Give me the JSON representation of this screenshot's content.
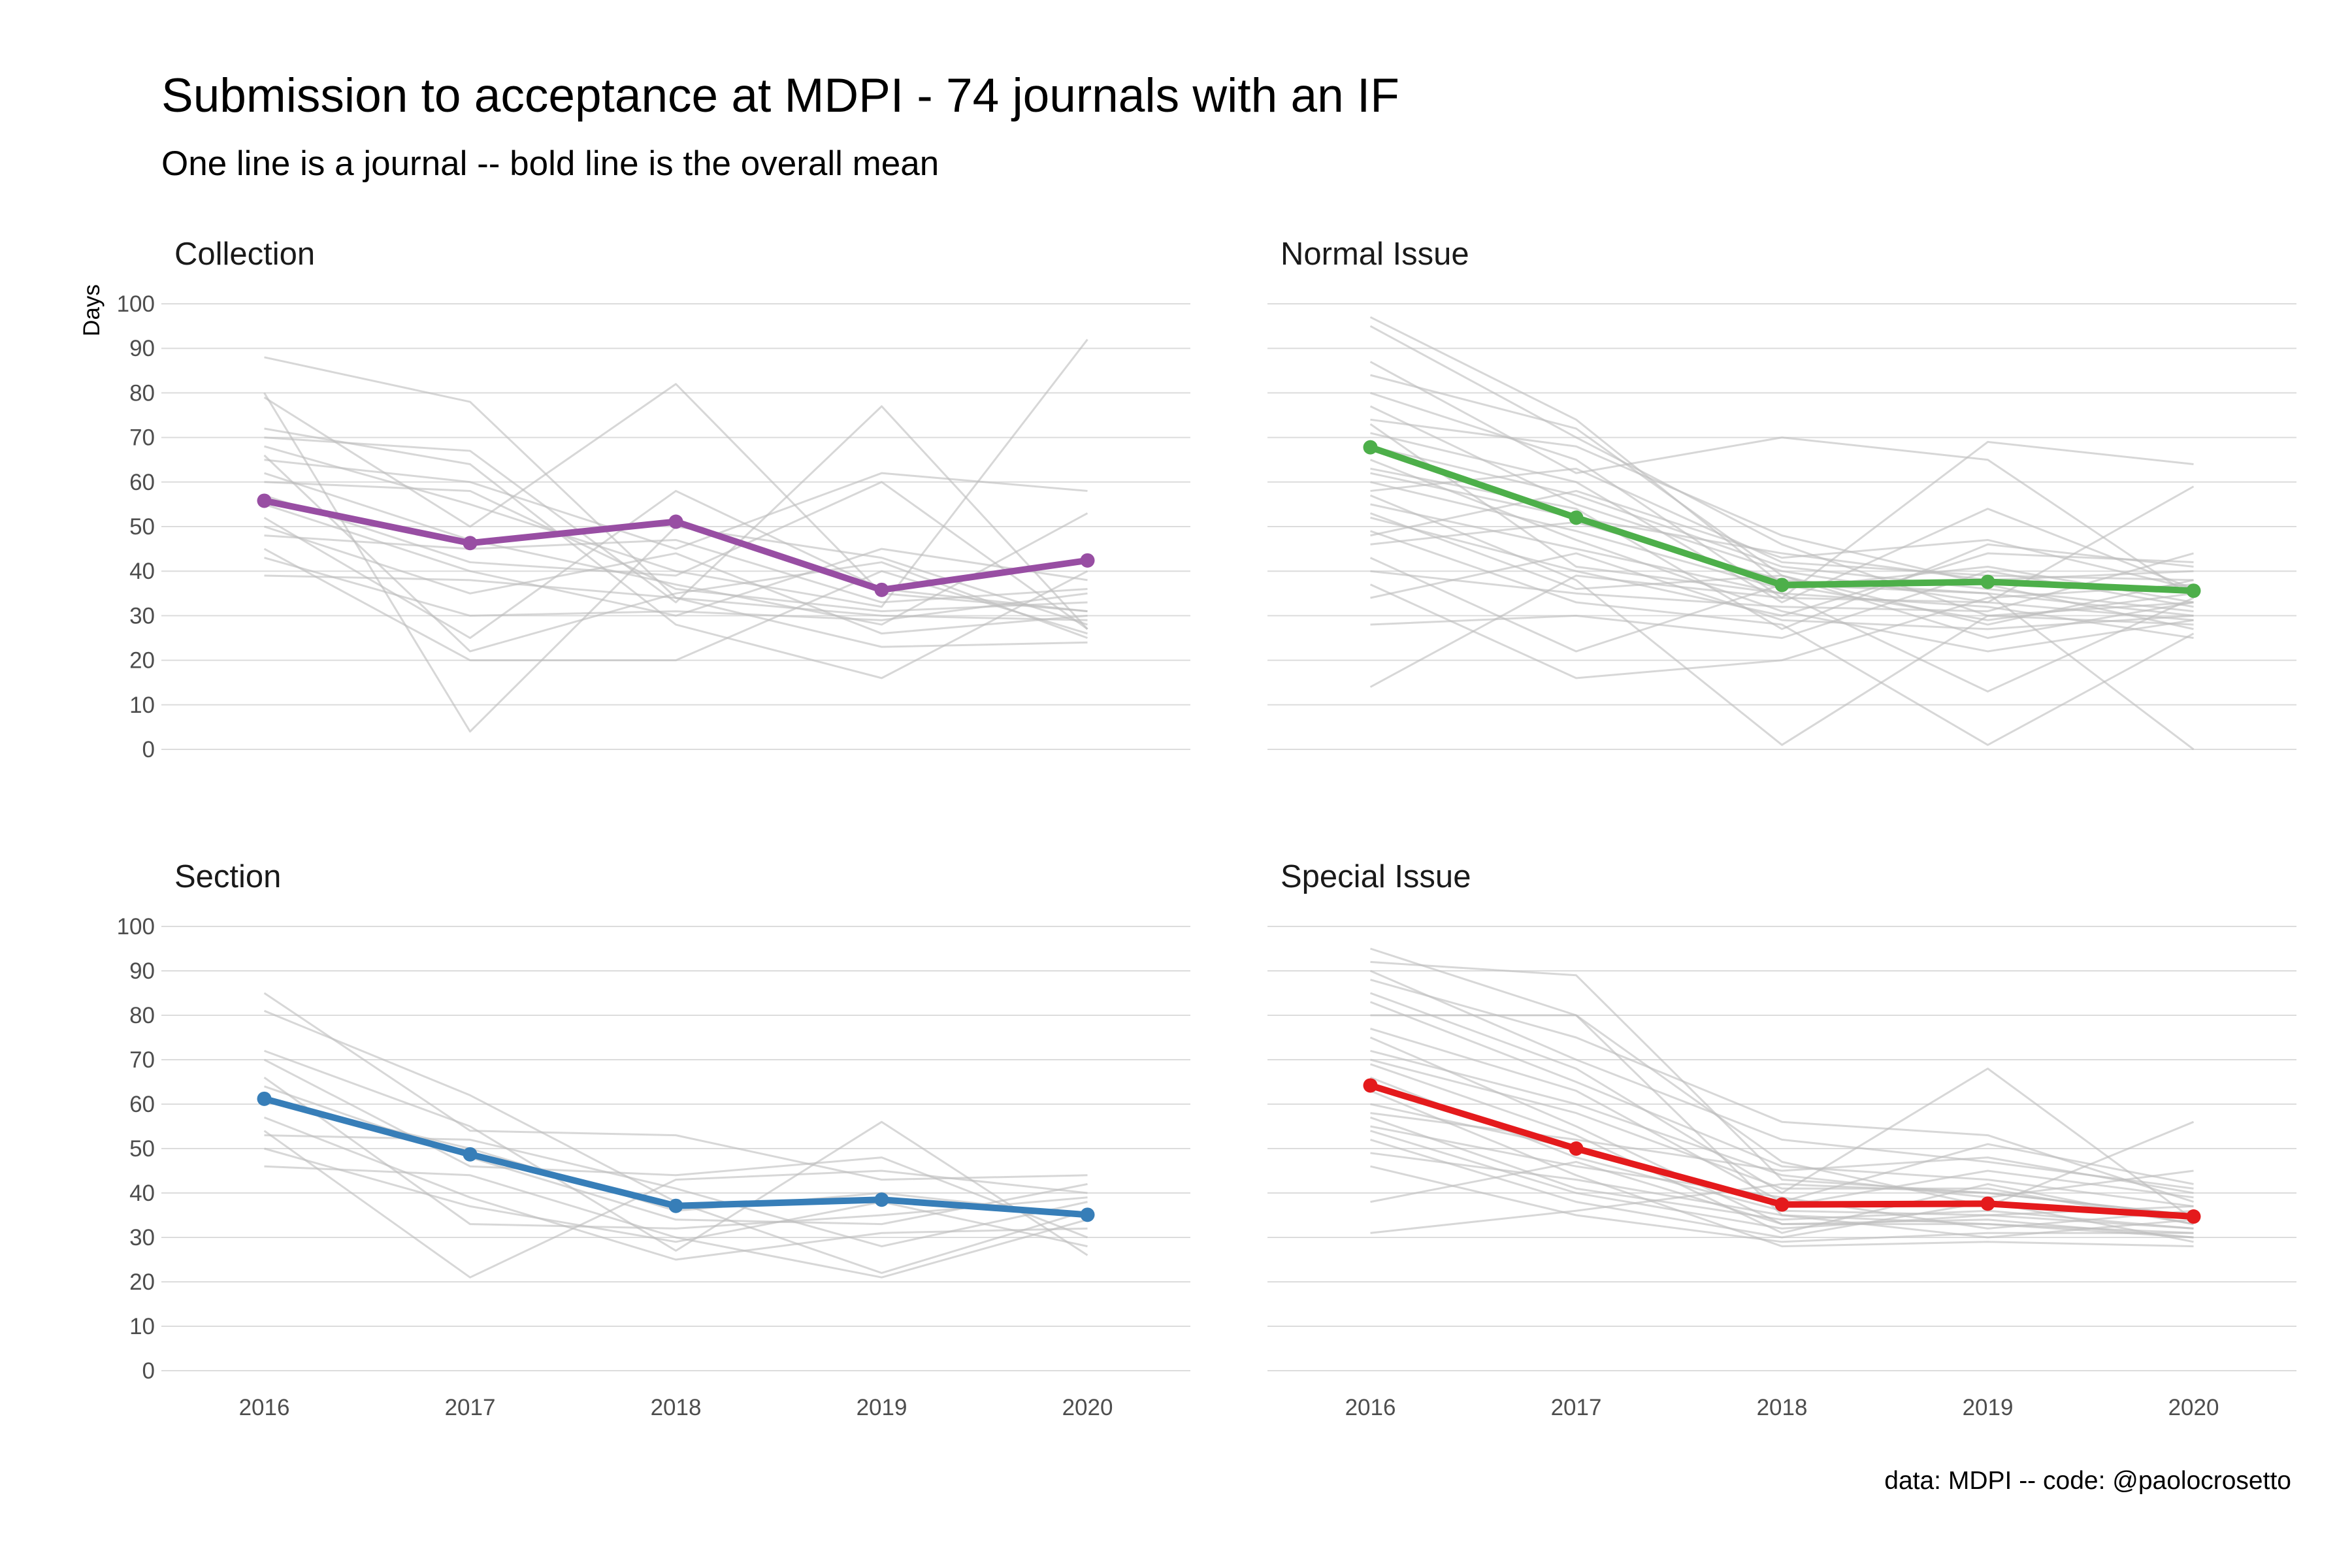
{
  "title": "Submission to acceptance at MDPI - 74 journals with an IF",
  "subtitle": "One line is a journal -- bold line is the overall mean",
  "caption": "data: MDPI -- code: @paolocrosetto",
  "chart_data": {
    "type": "line",
    "ylabel": "Days",
    "x": [
      "2016",
      "2017",
      "2018",
      "2019",
      "2020"
    ],
    "yticks": [
      "0",
      "10",
      "20",
      "30",
      "40",
      "50",
      "60",
      "70",
      "80",
      "90",
      "100"
    ],
    "ylim": [
      0,
      100
    ],
    "grid": true,
    "background_line_color": "#bdbdbd",
    "facets": [
      {
        "title": "Collection",
        "color": "#984ea3",
        "mean": [
          55.8,
          46.3,
          51.1,
          35.8,
          42.4
        ],
        "journals": [
          [
            88,
            78,
            34,
            30,
            29
          ],
          [
            79,
            50,
            82,
            35,
            31
          ],
          [
            70,
            67,
            33,
            77,
            27
          ],
          [
            68,
            55,
            40,
            32,
            92
          ],
          [
            65,
            60,
            45,
            62,
            58
          ],
          [
            62,
            47,
            37,
            28,
            53
          ],
          [
            60,
            58,
            36,
            31,
            33
          ],
          [
            55,
            40,
            30,
            45,
            38
          ],
          [
            52,
            25,
            58,
            36,
            31
          ],
          [
            50,
            35,
            44,
            26,
            30
          ],
          [
            45,
            20,
            20,
            40,
            26
          ],
          [
            43,
            30,
            31,
            29,
            35
          ],
          [
            39,
            38,
            34,
            23,
            24
          ],
          [
            80,
            4,
            50,
            43,
            28
          ],
          [
            72,
            64,
            28,
            16,
            40
          ],
          [
            66,
            22,
            35,
            42,
            25
          ],
          [
            57,
            42,
            39,
            60,
            27
          ],
          [
            48,
            45,
            47,
            33,
            36
          ]
        ]
      },
      {
        "title": "Normal Issue",
        "color": "#4daf4a",
        "mean": [
          67.8,
          52.0,
          36.9,
          37.6,
          35.6
        ],
        "journals": [
          [
            97,
            74,
            37,
            35,
            30
          ],
          [
            95,
            70,
            46,
            30,
            33
          ],
          [
            87,
            62,
            70,
            65,
            34
          ],
          [
            84,
            72,
            39,
            28,
            38
          ],
          [
            80,
            65,
            34,
            69,
            64
          ],
          [
            77,
            55,
            40,
            33,
            59
          ],
          [
            74,
            68,
            48,
            37,
            27
          ],
          [
            71,
            60,
            33,
            54,
            36
          ],
          [
            68,
            57,
            41,
            36,
            31
          ],
          [
            65,
            47,
            31,
            22,
            29
          ],
          [
            62,
            52,
            44,
            38,
            40
          ],
          [
            60,
            49,
            36,
            41,
            33
          ],
          [
            57,
            38,
            1,
            30,
            28
          ],
          [
            55,
            45,
            35,
            13,
            34
          ],
          [
            52,
            40,
            30,
            44,
            42
          ],
          [
            49,
            33,
            28,
            1,
            26
          ],
          [
            46,
            51,
            38,
            35,
            0
          ],
          [
            43,
            22,
            37,
            29,
            35
          ],
          [
            40,
            35,
            32,
            31,
            44
          ],
          [
            37,
            16,
            20,
            34,
            37
          ],
          [
            34,
            44,
            29,
            27,
            30
          ],
          [
            28,
            30,
            25,
            40,
            32
          ],
          [
            14,
            39,
            34,
            33,
            29
          ],
          [
            58,
            63,
            42,
            39,
            38
          ],
          [
            63,
            54,
            27,
            46,
            41
          ],
          [
            73,
            41,
            35,
            32,
            25
          ],
          [
            48,
            58,
            43,
            47,
            36
          ],
          [
            53,
            36,
            39,
            25,
            33
          ]
        ]
      },
      {
        "title": "Section",
        "color": "#377eb8",
        "mean": [
          61.2,
          48.7,
          37.1,
          38.5,
          35.1
        ],
        "journals": [
          [
            85,
            54,
            53,
            43,
            44
          ],
          [
            81,
            62,
            38,
            22,
            36
          ],
          [
            72,
            55,
            27,
            56,
            26
          ],
          [
            70,
            46,
            44,
            48,
            30
          ],
          [
            66,
            33,
            32,
            35,
            39
          ],
          [
            61,
            50,
            36,
            40,
            35
          ],
          [
            57,
            39,
            25,
            31,
            32
          ],
          [
            54,
            21,
            43,
            45,
            40
          ],
          [
            50,
            37,
            29,
            38,
            28
          ],
          [
            46,
            44,
            30,
            21,
            34
          ],
          [
            53,
            52,
            41,
            28,
            38
          ],
          [
            64,
            48,
            34,
            33,
            42
          ]
        ]
      },
      {
        "title": "Special Issue",
        "color": "#e41a1c",
        "mean": [
          64.2,
          50.0,
          37.4,
          37.6,
          34.7
        ],
        "journals": [
          [
            95,
            80,
            35,
            33,
            31
          ],
          [
            92,
            89,
            43,
            40,
            35
          ],
          [
            88,
            75,
            56,
            53,
            38
          ],
          [
            85,
            68,
            40,
            68,
            34
          ],
          [
            80,
            80,
            47,
            37,
            56
          ],
          [
            77,
            63,
            38,
            51,
            42
          ],
          [
            75,
            55,
            33,
            34,
            30
          ],
          [
            72,
            60,
            44,
            39,
            45
          ],
          [
            69,
            53,
            31,
            42,
            33
          ],
          [
            66,
            48,
            36,
            35,
            37
          ],
          [
            63,
            44,
            28,
            29,
            28
          ],
          [
            60,
            50,
            37,
            45,
            39
          ],
          [
            57,
            41,
            34,
            36,
            32
          ],
          [
            55,
            46,
            39,
            32,
            36
          ],
          [
            52,
            38,
            30,
            38,
            29
          ],
          [
            49,
            43,
            35,
            30,
            34
          ],
          [
            46,
            35,
            29,
            31,
            31
          ],
          [
            38,
            47,
            33,
            33,
            30
          ],
          [
            31,
            36,
            42,
            40,
            35
          ],
          [
            90,
            70,
            52,
            47,
            41
          ],
          [
            83,
            65,
            46,
            43,
            37
          ],
          [
            70,
            58,
            41,
            41,
            33
          ],
          [
            58,
            52,
            45,
            48,
            40
          ],
          [
            54,
            40,
            32,
            35,
            32
          ]
        ]
      }
    ]
  }
}
